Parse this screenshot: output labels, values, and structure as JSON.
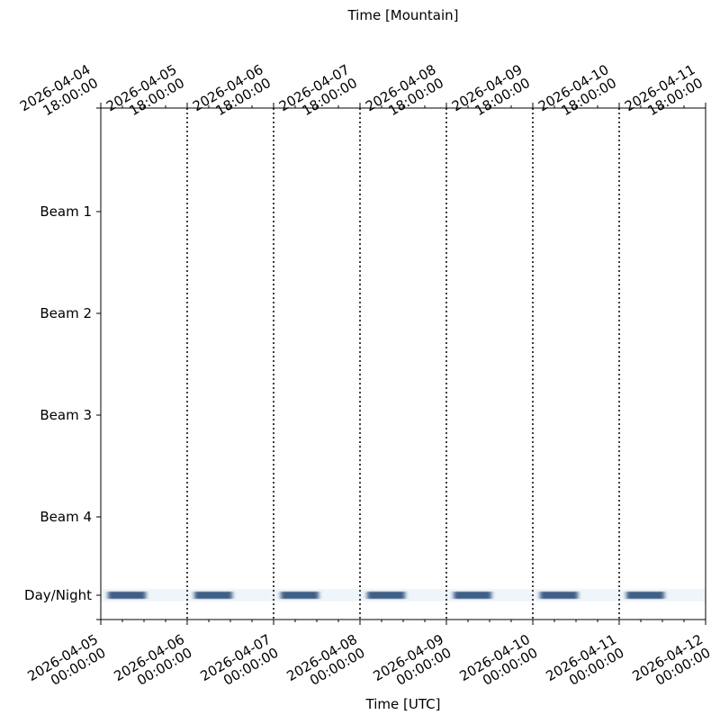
{
  "chart_data": {
    "type": "timeline",
    "xlabel": "Time [UTC]",
    "x2label": "Time [Mountain]",
    "xlim": [
      "2026-04-05 00:00:00",
      "2026-04-12 00:00:00"
    ],
    "xticks": [
      "2026-04-05 00:00:00",
      "2026-04-06 00:00:00",
      "2026-04-07 00:00:00",
      "2026-04-08 00:00:00",
      "2026-04-09 00:00:00",
      "2026-04-10 00:00:00",
      "2026-04-11 00:00:00",
      "2026-04-12 00:00:00"
    ],
    "x2ticks": [
      {
        "value": "2026-04-05 00:00:00",
        "label": "2026-04-04 18:00:00"
      },
      {
        "value": "2026-04-06 00:00:00",
        "label": "2026-04-05 18:00:00"
      },
      {
        "value": "2026-04-07 00:00:00",
        "label": "2026-04-06 18:00:00"
      },
      {
        "value": "2026-04-08 00:00:00",
        "label": "2026-04-07 18:00:00"
      },
      {
        "value": "2026-04-09 00:00:00",
        "label": "2026-04-08 18:00:00"
      },
      {
        "value": "2026-04-10 00:00:00",
        "label": "2026-04-09 18:00:00"
      },
      {
        "value": "2026-04-11 00:00:00",
        "label": "2026-04-10 18:00:00"
      },
      {
        "value": "2026-04-12 00:00:00",
        "label": "2026-04-11 18:00:00"
      }
    ],
    "categories": [
      "Beam 1",
      "Beam 2",
      "Beam 3",
      "Beam 4",
      "Day/Night"
    ],
    "night_color": "#3f5f86",
    "day_color": "#eef5fb",
    "grid": true,
    "night": [
      {
        "start": "2026-04-05 02:00:00",
        "end": "2026-04-05 12:30:00"
      },
      {
        "start": "2026-04-06 02:00:00",
        "end": "2026-04-06 12:30:00"
      },
      {
        "start": "2026-04-07 02:00:00",
        "end": "2026-04-07 12:30:00"
      },
      {
        "start": "2026-04-08 02:00:00",
        "end": "2026-04-08 12:30:00"
      },
      {
        "start": "2026-04-09 02:00:00",
        "end": "2026-04-09 12:30:00"
      },
      {
        "start": "2026-04-10 02:00:00",
        "end": "2026-04-10 12:30:00"
      },
      {
        "start": "2026-04-11 02:00:00",
        "end": "2026-04-11 12:30:00"
      }
    ]
  }
}
